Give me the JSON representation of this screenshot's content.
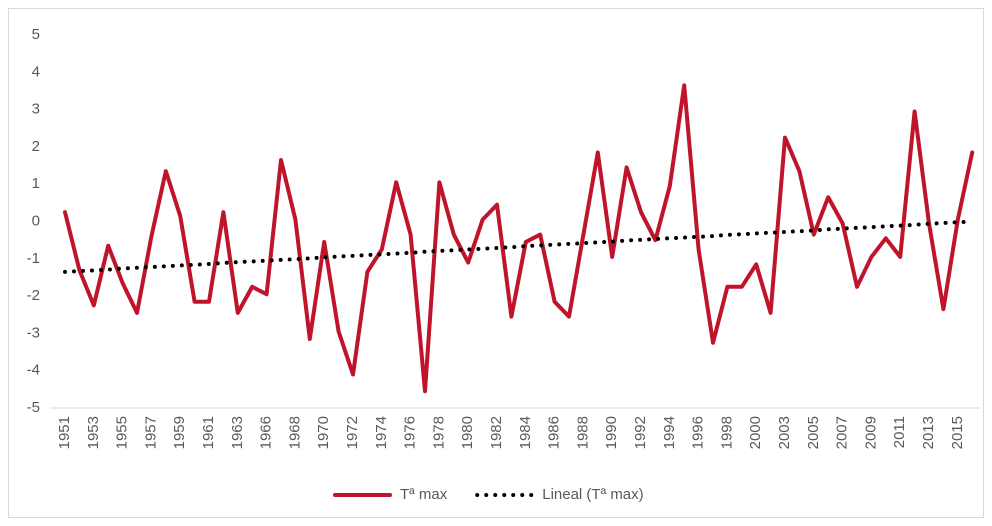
{
  "chart_data": {
    "type": "line",
    "categories": [
      "1951",
      null,
      "1953",
      null,
      "1955",
      null,
      "1957",
      null,
      "1959",
      null,
      "1961",
      null,
      "1963",
      null,
      "1966",
      null,
      "1968",
      null,
      "1970",
      null,
      "1972",
      null,
      "1974",
      null,
      "1976",
      null,
      "1978",
      null,
      "1980",
      null,
      "1982",
      null,
      "1984",
      null,
      "1986",
      null,
      "1988",
      null,
      "1990",
      null,
      "1992",
      null,
      "1994",
      null,
      "1996",
      null,
      "1998",
      null,
      "2000",
      null,
      "2003",
      null,
      "2005",
      null,
      "2007",
      null,
      "2009",
      null,
      "2011",
      null,
      "2013",
      null,
      "2015",
      null
    ],
    "series": [
      {
        "name": "Tª max",
        "color": "#c0142b",
        "style": "solid",
        "values": [
          0.25,
          -1.3,
          -2.25,
          -0.65,
          -1.65,
          -2.45,
          -0.4,
          1.35,
          0.15,
          -2.15,
          -2.15,
          0.25,
          -2.45,
          -1.75,
          -1.95,
          1.65,
          0.05,
          -3.15,
          -0.55,
          -2.95,
          -4.1,
          -1.35,
          -0.75,
          1.05,
          -0.35,
          -4.55,
          1.05,
          -0.35,
          -1.1,
          0.05,
          0.45,
          -2.55,
          -0.55,
          -0.35,
          -2.15,
          -2.55,
          -0.35,
          1.85,
          -0.95,
          1.45,
          0.25,
          -0.5,
          0.95,
          3.65,
          -0.75,
          -3.25,
          -1.75,
          -1.75,
          -1.15,
          -2.45,
          2.25,
          1.35,
          -0.35,
          0.65,
          -0.05,
          -1.75,
          -0.95,
          -0.45,
          -0.95,
          2.95,
          -0.05,
          -2.35,
          0.05,
          1.85
        ]
      },
      {
        "name": "Lineal (Tª max)",
        "color": "#000000",
        "style": "dotted",
        "values": [
          -1.35,
          -1.33,
          -1.31,
          -1.29,
          -1.26,
          -1.24,
          -1.22,
          -1.2,
          -1.18,
          -1.16,
          -1.14,
          -1.11,
          -1.09,
          -1.07,
          -1.05,
          -1.03,
          -1.01,
          -0.99,
          -0.96,
          -0.94,
          -0.92,
          -0.9,
          -0.88,
          -0.86,
          -0.84,
          -0.81,
          -0.79,
          -0.77,
          -0.75,
          -0.73,
          -0.71,
          -0.69,
          -0.66,
          -0.64,
          -0.62,
          -0.6,
          -0.58,
          -0.56,
          -0.54,
          -0.51,
          -0.49,
          -0.47,
          -0.45,
          -0.43,
          -0.41,
          -0.39,
          -0.36,
          -0.34,
          -0.32,
          -0.3,
          -0.28,
          -0.26,
          -0.24,
          -0.21,
          -0.19,
          -0.17,
          -0.15,
          -0.13,
          -0.11,
          -0.09,
          -0.06,
          -0.04,
          -0.02,
          0
        ]
      }
    ],
    "ylim": [
      -5,
      5
    ],
    "yticks": [
      -5,
      -4,
      -3,
      -2,
      -1,
      0,
      1,
      2,
      3,
      4,
      5
    ],
    "grid": false,
    "legend": "bottom"
  }
}
